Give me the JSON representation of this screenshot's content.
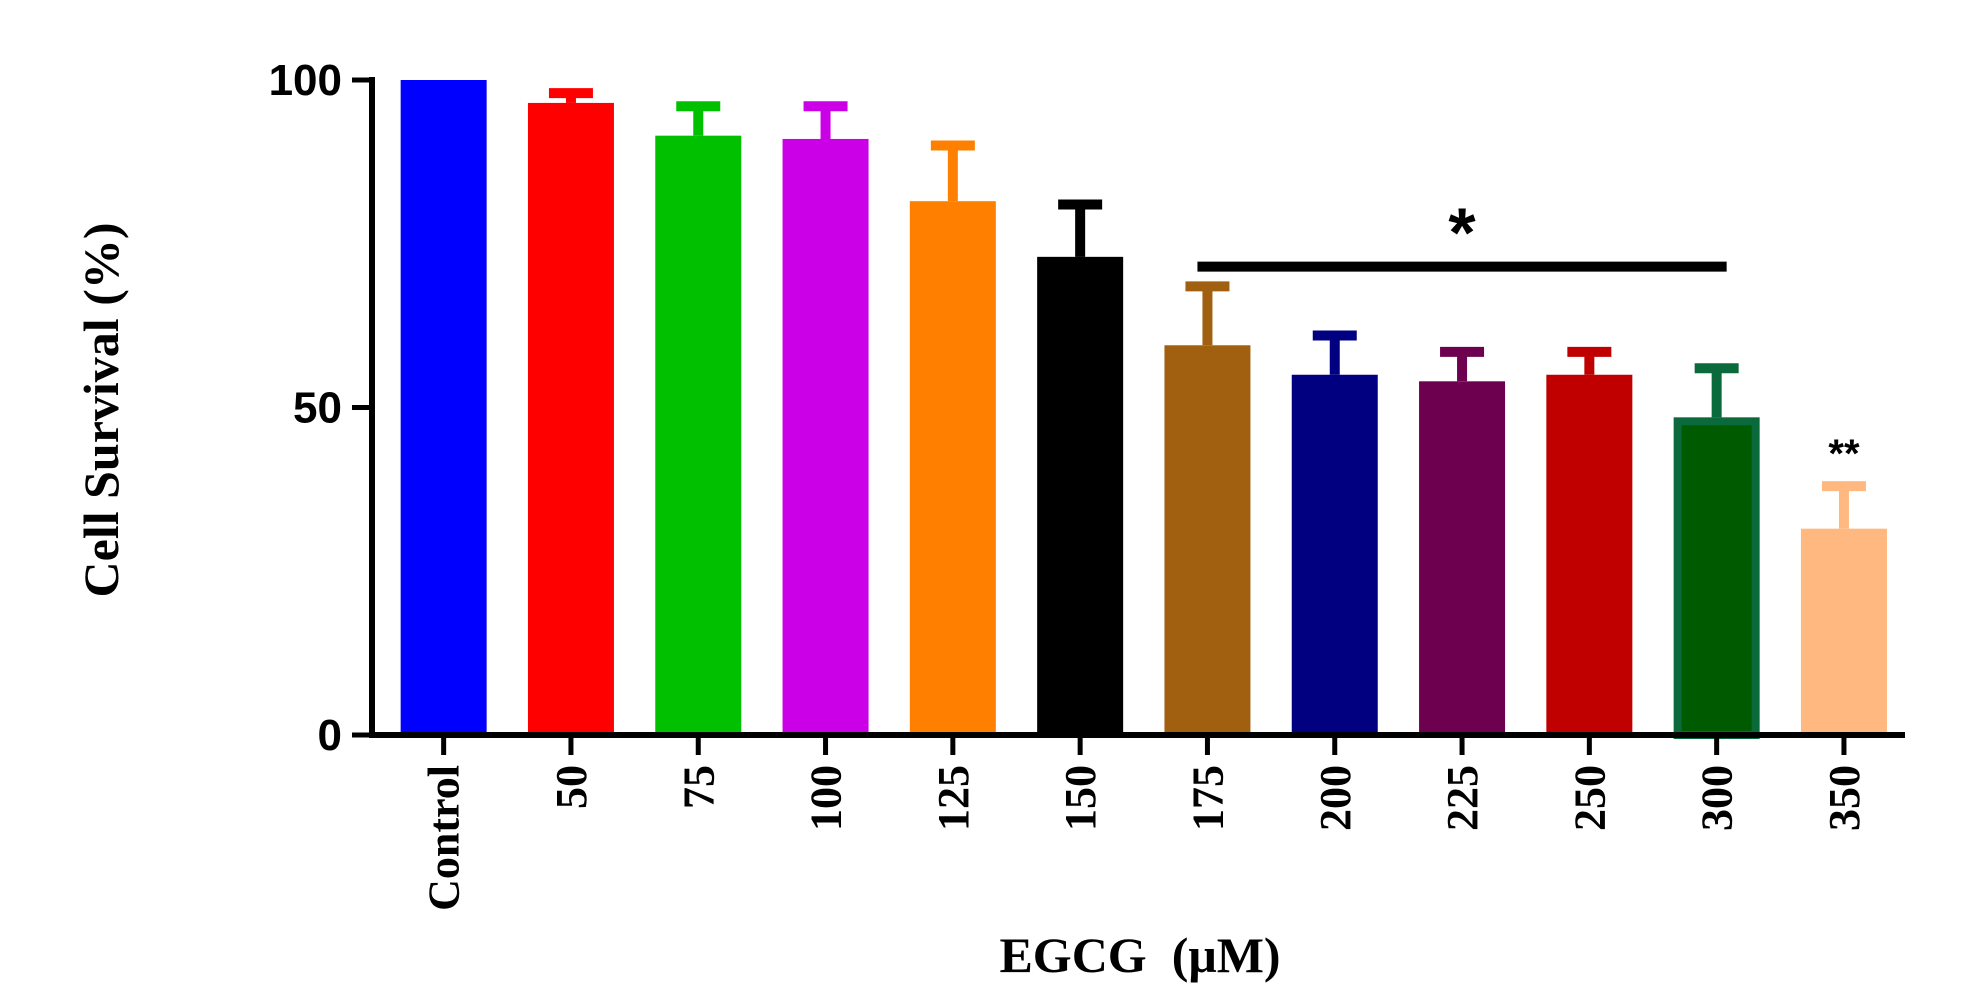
{
  "chart_data": {
    "type": "bar",
    "title": "",
    "xlabel": "EGCG  (μM)",
    "ylabel": "Cell Survival (%)",
    "ylim": [
      0,
      100
    ],
    "yticks": [
      "0",
      "50",
      "100"
    ],
    "grid": false,
    "categories": [
      "Control",
      "50",
      "75",
      "100",
      "125",
      "150",
      "175",
      "200",
      "225",
      "250",
      "300",
      "350"
    ],
    "values": [
      100,
      96.5,
      91.5,
      91,
      81.5,
      73,
      59.5,
      55,
      54,
      55,
      48.5,
      31.5
    ],
    "errors": [
      0,
      1.5,
      4.5,
      5,
      8.5,
      8,
      9,
      6,
      4.5,
      3.5,
      7.5,
      6.5
    ],
    "colors": [
      "#0000FF",
      "#FF0000",
      "#00C000",
      "#CC00E6",
      "#FF8000",
      "#000000",
      "#A06010",
      "#000080",
      "#6E0050",
      "#C00000",
      "#005A00",
      "#FFB980"
    ],
    "edge_colors": [
      "#0000FF",
      "#FF0000",
      "#00C000",
      "#CC00E6",
      "#FF8000",
      "#000000",
      "#A06010",
      "#000080",
      "#6E0050",
      "#C00000",
      "#0A6A3C",
      "#FFB980"
    ],
    "annotations": [
      {
        "text": "*",
        "type": "bracket",
        "from": "175",
        "to": "300",
        "value": 71.5
      },
      {
        "text": "**",
        "type": "label",
        "category": "350",
        "value": 44
      }
    ]
  }
}
